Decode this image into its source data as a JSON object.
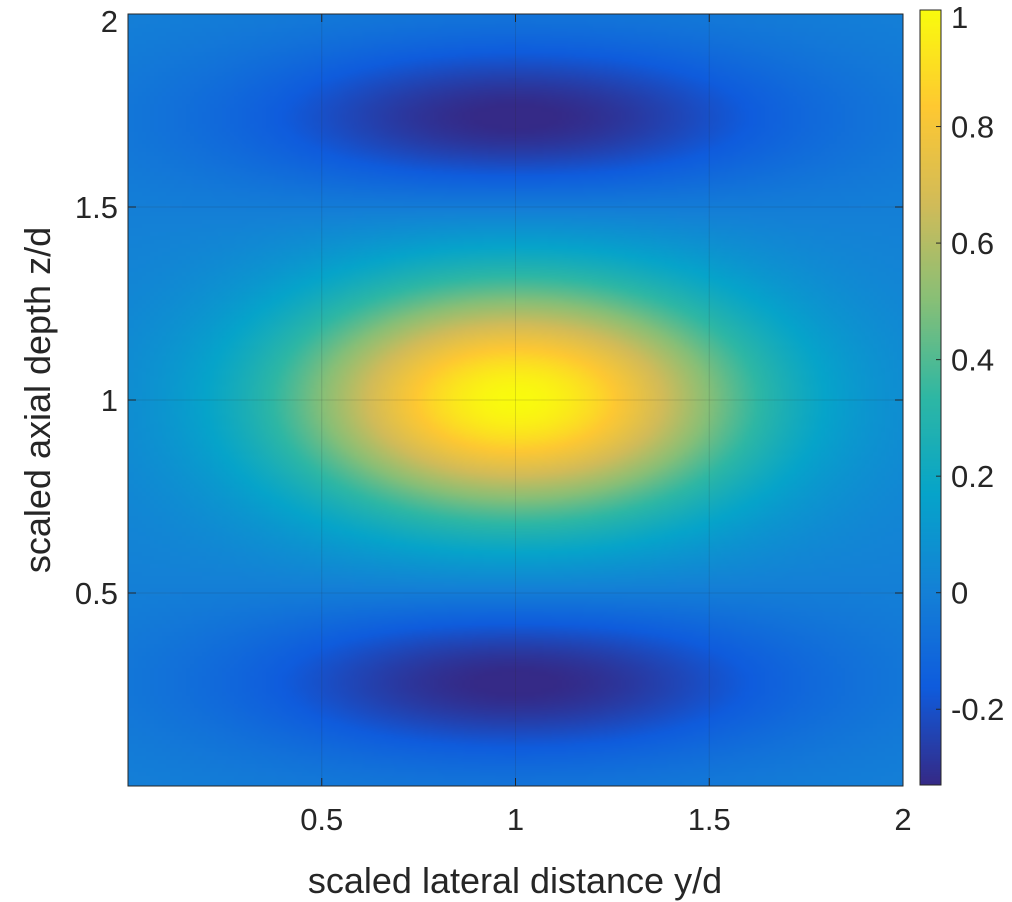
{
  "chart_data": {
    "type": "heatmap",
    "title": "",
    "xlabel": "scaled lateral distance y/d",
    "ylabel": "scaled axial depth z/d",
    "xlim": [
      0,
      2
    ],
    "ylim": [
      0,
      2
    ],
    "xticks": [
      0.5,
      1,
      1.5,
      2
    ],
    "xtick_labels": [
      "0.5",
      "1",
      "1.5",
      "2"
    ],
    "yticks": [
      0.5,
      1,
      1.5,
      2
    ],
    "ytick_labels": [
      "0.5",
      "1",
      "1.5",
      "2"
    ],
    "grid": true,
    "colormap": "parula",
    "clim": [
      -0.33,
      1
    ],
    "colorbar": {
      "ticks": [
        -0.2,
        0,
        0.2,
        0.4,
        0.6,
        0.8,
        1
      ],
      "tick_labels": [
        "-0.2",
        "0",
        "0.2",
        "0.4",
        "0.6",
        "0.8",
        "1"
      ]
    },
    "features": [
      {
        "kind": "maximum",
        "y": 1.0,
        "z": 1.0,
        "value": 1.0
      },
      {
        "kind": "minimum",
        "y": 1.0,
        "z": 1.73,
        "value": -0.32
      },
      {
        "kind": "minimum",
        "y": 1.0,
        "z": 0.27,
        "value": -0.33
      }
    ]
  },
  "colors": {
    "parula": [
      "#352a87",
      "#0f5cdd",
      "#1481d6",
      "#06a4ca",
      "#2eb7a4",
      "#87bf77",
      "#d1bb59",
      "#fec832",
      "#f9fb0e"
    ]
  }
}
